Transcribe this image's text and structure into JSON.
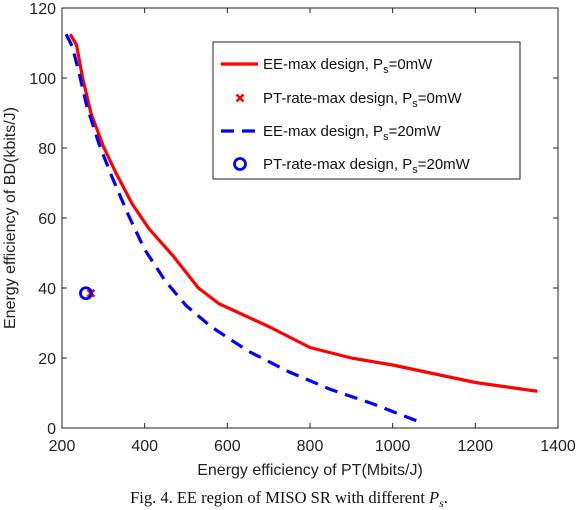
{
  "chart_data": {
    "type": "line",
    "xlabel": "Energy efficiency of PT(Mbits/J)",
    "ylabel": "Energy efficiency of BD(kbits/J)",
    "xlim": [
      200,
      1400
    ],
    "ylim": [
      0,
      120
    ],
    "xticks": [
      "200",
      "400",
      "600",
      "800",
      "1000",
      "1200",
      "1400"
    ],
    "yticks": [
      "0",
      "20",
      "40",
      "60",
      "80",
      "100",
      "120"
    ],
    "grid": false,
    "legend_position": "top-right",
    "series": [
      {
        "name": "EE-max design, P_s=0mW",
        "style": "solid-line",
        "color": "#ff0000",
        "x": [
          220,
          235,
          250,
          270,
          300,
          330,
          370,
          410,
          470,
          530,
          580,
          700,
          800,
          900,
          1000,
          1100,
          1200,
          1350
        ],
        "y": [
          112.5,
          109.5,
          100,
          90,
          80.5,
          73,
          64,
          57,
          49,
          40,
          35.5,
          29,
          23,
          20,
          18,
          15.5,
          13,
          10.5
        ]
      },
      {
        "name": "PT-rate-max design, P_s=0mW",
        "style": "x-marker",
        "color": "#ff0000",
        "x": [
          270
        ],
        "y": [
          38.5
        ]
      },
      {
        "name": "EE-max design, P_s=20mW",
        "style": "dashed-line",
        "color": "#0000ff",
        "x": [
          210,
          225,
          240,
          260,
          290,
          320,
          360,
          400,
          450,
          500,
          560,
          650,
          750,
          850,
          950,
          1070
        ],
        "y": [
          112.5,
          109,
          102,
          92,
          81,
          72,
          61,
          51,
          42,
          35,
          29,
          22,
          16,
          11,
          7,
          1.5
        ]
      },
      {
        "name": "PT-rate-max design, P_s=20mW",
        "style": "circle-marker",
        "color": "#0000ff",
        "x": [
          258
        ],
        "y": [
          38.5
        ]
      }
    ],
    "legend": [
      {
        "base": "EE-max design, P",
        "sub": "s",
        "tail": "=0mW",
        "key": "solid-line",
        "color": "#ff0000"
      },
      {
        "base": "PT-rate-max design, P",
        "sub": "s",
        "tail": "=0mW",
        "key": "x-marker",
        "color": "#ff0000"
      },
      {
        "base": "EE-max design, P",
        "sub": "s",
        "tail": "=20mW",
        "key": "dashed-line",
        "color": "#0000ff"
      },
      {
        "base": "PT-rate-max design, P",
        "sub": "s",
        "tail": "=20mW",
        "key": "circle-marker",
        "color": "#0000ff"
      }
    ],
    "caption": {
      "text": "Fig. 4.  EE region of MISO SR with different ",
      "math_base": "P",
      "math_sub": "s",
      "end": "."
    }
  }
}
